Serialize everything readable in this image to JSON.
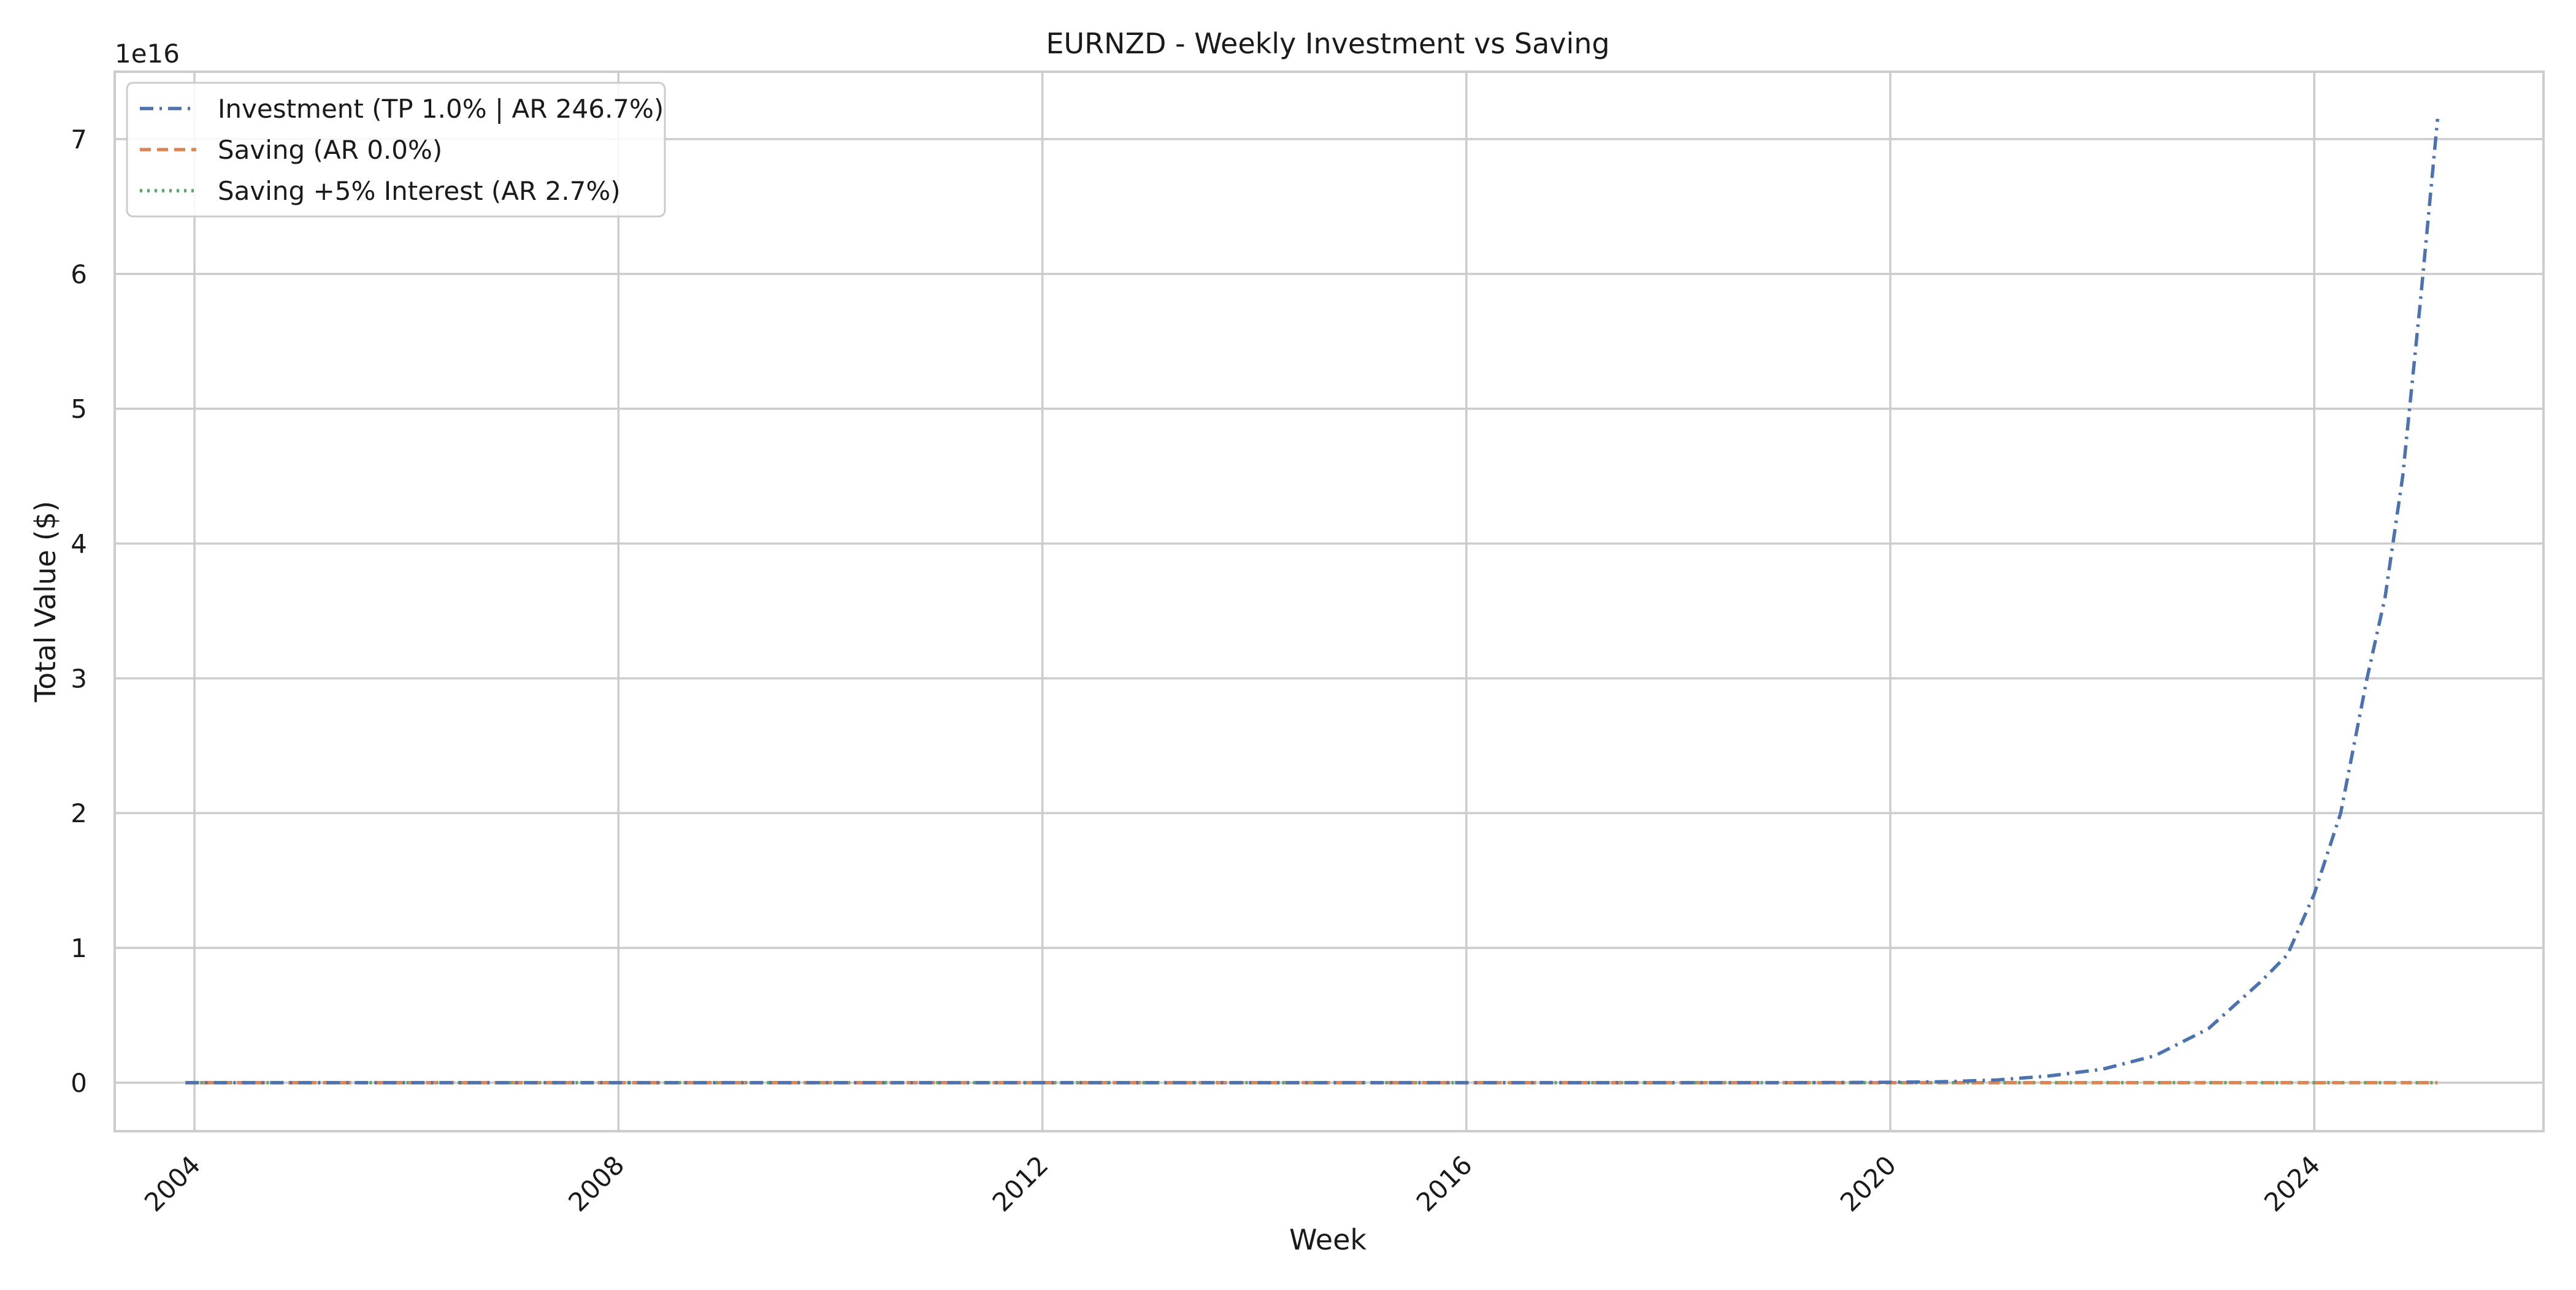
{
  "chart_data": {
    "type": "line",
    "title": "EURNZD - Weekly Investment vs Saving",
    "xlabel": "Week",
    "ylabel": "Total Value ($)",
    "y_offset_text": "1e16",
    "x_scale": "time",
    "xlim": [
      "2003-04-01",
      "2026-03-01"
    ],
    "ylim": [
      -0.36,
      7.5
    ],
    "y_unit_multiplier": 1e+16,
    "x_ticks": [
      "2004",
      "2008",
      "2012",
      "2016",
      "2020",
      "2024"
    ],
    "y_ticks": [
      "0",
      "1",
      "2",
      "3",
      "4",
      "5",
      "6",
      "7"
    ],
    "grid": true,
    "legend_position": "top-left",
    "series": [
      {
        "name": "Investment (TP 1.0% | AR 246.7%)",
        "color": "#4c72b0",
        "line_style": "dash-dot",
        "points": [
          [
            "2003-12-01",
            0
          ],
          [
            "2008-01-01",
            0
          ],
          [
            "2012-01-01",
            0
          ],
          [
            "2016-01-01",
            0
          ],
          [
            "2019-01-01",
            0
          ],
          [
            "2020-01-01",
            0.003
          ],
          [
            "2020-07-01",
            0.007
          ],
          [
            "2021-01-01",
            0.02
          ],
          [
            "2021-07-01",
            0.05
          ],
          [
            "2022-01-01",
            0.1
          ],
          [
            "2022-07-01",
            0.2
          ],
          [
            "2023-01-01",
            0.4
          ],
          [
            "2023-07-01",
            0.75
          ],
          [
            "2023-10-01",
            0.95
          ],
          [
            "2024-01-01",
            1.4
          ],
          [
            "2024-04-01",
            2.0
          ],
          [
            "2024-07-01",
            3.0
          ],
          [
            "2024-09-01",
            3.6
          ],
          [
            "2024-11-01",
            4.5
          ],
          [
            "2025-01-01",
            5.8
          ],
          [
            "2025-03-01",
            7.15
          ]
        ]
      },
      {
        "name": "Saving (AR 0.0%)",
        "color": "#dd8452",
        "line_style": "dashed",
        "points": [
          [
            "2003-12-01",
            0
          ],
          [
            "2025-03-01",
            0
          ]
        ]
      },
      {
        "name": "Saving +5% Interest (AR 2.7%)",
        "color": "#55a868",
        "line_style": "dotted",
        "points": [
          [
            "2003-12-01",
            0
          ],
          [
            "2025-03-01",
            0
          ]
        ]
      }
    ]
  }
}
